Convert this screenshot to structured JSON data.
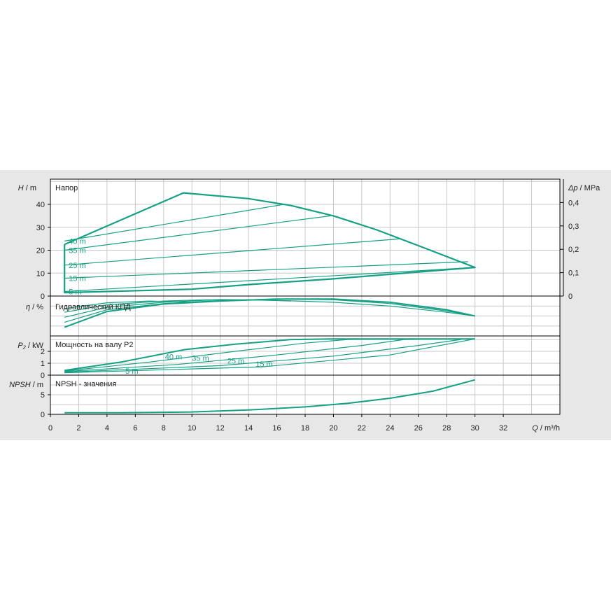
{
  "colors": {
    "panel_bg": "#e7e7e7",
    "plot_bg": "#ffffff",
    "grid": "#c8c8c8",
    "curve": "#16a085",
    "axis": "#000000"
  },
  "chart_data": [
    {
      "type": "line",
      "title": "Напор",
      "ylabel": {
        "symbol": "H",
        "unit": "m"
      },
      "y2label": {
        "symbol": "Δp",
        "unit": "MPa"
      },
      "xlim": [
        0,
        36
      ],
      "ylim": [
        0,
        51
      ],
      "yticks": [
        "0",
        "10",
        "20",
        "30",
        "40"
      ],
      "y2ticks": [
        "0",
        "0,1",
        "0,2",
        "0,3",
        "0,4"
      ],
      "envelope": [
        [
          1,
          22.5
        ],
        [
          9.4,
          45
        ],
        [
          14,
          42.5
        ],
        [
          17,
          39.5
        ],
        [
          20,
          35
        ],
        [
          23,
          29
        ],
        [
          26,
          22
        ],
        [
          30,
          12.5
        ],
        [
          26,
          10.5
        ],
        [
          20,
          7.5
        ],
        [
          14,
          5
        ],
        [
          10,
          3
        ],
        [
          1,
          1.5
        ],
        [
          1,
          22.5
        ]
      ],
      "series": [
        {
          "label": "40 m",
          "values": [
            [
              1,
              24
            ],
            [
              16.5,
              40
            ]
          ]
        },
        {
          "label": "35 m",
          "values": [
            [
              1,
              20
            ],
            [
              19.8,
              35
            ]
          ]
        },
        {
          "label": "25 m",
          "values": [
            [
              1,
              13.5
            ],
            [
              24.8,
              25
            ]
          ]
        },
        {
          "label": "15 m",
          "values": [
            [
              1,
              7.8
            ],
            [
              29.5,
              15
            ]
          ]
        },
        {
          "label": "5 m",
          "values": [
            [
              1,
              2
            ],
            [
              30,
              12.5
            ]
          ]
        }
      ]
    },
    {
      "type": "line",
      "title": "Гидравлический КПД",
      "ylabel": {
        "symbol": "η",
        "unit": "%"
      },
      "series": [
        {
          "label": "",
          "values": [
            [
              1,
              3.5
            ],
            [
              4,
              9.8
            ],
            [
              8,
              12.8
            ],
            [
              12,
              14
            ],
            [
              16,
              14.8
            ],
            [
              20,
              14.8
            ],
            [
              24,
              13.5
            ],
            [
              28,
              10.5
            ],
            [
              30,
              8
            ]
          ]
        },
        {
          "label": "",
          "values": [
            [
              1,
              5.5
            ],
            [
              4,
              10.5
            ],
            [
              8,
              13
            ],
            [
              12,
              14.2
            ],
            [
              16,
              14.8
            ],
            [
              20,
              14.5
            ],
            [
              24,
              13
            ],
            [
              28,
              10
            ],
            [
              30,
              8
            ]
          ]
        },
        {
          "label": "",
          "values": [
            [
              1,
              7.5
            ],
            [
              4,
              11.5
            ],
            [
              8,
              13.5
            ],
            [
              12,
              14.6
            ],
            [
              16,
              14.3
            ],
            [
              20,
              13.5
            ],
            [
              24,
              12
            ],
            [
              28,
              9.5
            ],
            [
              30,
              8
            ]
          ]
        },
        {
          "label": "",
          "values": [
            [
              1,
              9.5
            ],
            [
              4,
              12.5
            ],
            [
              8,
              14
            ],
            [
              11,
              14.5
            ],
            [
              14,
              14.5
            ],
            [
              17,
              14
            ]
          ]
        },
        {
          "label": "",
          "values": [
            [
              1,
              11
            ],
            [
              4,
              13.3
            ],
            [
              7,
              14
            ],
            [
              10,
              13.5
            ]
          ]
        }
      ]
    },
    {
      "type": "line",
      "title": "Мощность на валу P2",
      "ylabel": {
        "symbol": "P₂",
        "unit": "kW"
      },
      "yticks": [
        "0",
        "1",
        "2"
      ],
      "series": [
        {
          "label": "40 m",
          "values": [
            [
              1,
              0.4
            ],
            [
              5,
              1.1
            ],
            [
              9.5,
              2.15
            ],
            [
              13,
              2.6
            ],
            [
              17,
              3.0
            ],
            [
              20,
              3.05
            ],
            [
              30,
              3.05
            ]
          ]
        },
        {
          "label": "35 m",
          "values": [
            [
              1,
              0.35
            ],
            [
              7,
              1.1
            ],
            [
              13,
              2.0
            ],
            [
              18,
              2.7
            ],
            [
              21,
              3.0
            ],
            [
              30,
              3.05
            ]
          ]
        },
        {
          "label": "25 m",
          "values": [
            [
              1,
              0.3
            ],
            [
              9,
              0.9
            ],
            [
              16,
              1.7
            ],
            [
              22,
              2.5
            ],
            [
              25,
              3.0
            ],
            [
              30,
              3.05
            ]
          ]
        },
        {
          "label": "15 m",
          "values": [
            [
              1,
              0.25
            ],
            [
              12,
              0.8
            ],
            [
              20,
              1.6
            ],
            [
              26,
              2.5
            ],
            [
              29,
              3.0
            ]
          ]
        },
        {
          "label": "5 m",
          "values": [
            [
              1,
              0.2
            ],
            [
              15,
              0.7
            ],
            [
              24,
              1.7
            ],
            [
              30,
              3.05
            ]
          ]
        }
      ]
    },
    {
      "type": "line",
      "title": "NPSH - значения",
      "ylabel": {
        "symbol": "NPSH",
        "unit": "m"
      },
      "yticks": [
        "0",
        "5"
      ],
      "series": [
        {
          "label": "",
          "values": [
            [
              1,
              0.4
            ],
            [
              5,
              0.4
            ],
            [
              10,
              0.6
            ],
            [
              14,
              1.1
            ],
            [
              18,
              1.9
            ],
            [
              21,
              2.8
            ],
            [
              24,
              4.1
            ],
            [
              27,
              5.9
            ],
            [
              30,
              8.8
            ]
          ]
        }
      ]
    }
  ],
  "x_axis": {
    "ticks": [
      "0",
      "2",
      "4",
      "6",
      "8",
      "10",
      "12",
      "14",
      "16",
      "18",
      "20",
      "22",
      "24",
      "26",
      "28",
      "30",
      "32"
    ],
    "symbol": "Q",
    "unit": "m³/h"
  }
}
